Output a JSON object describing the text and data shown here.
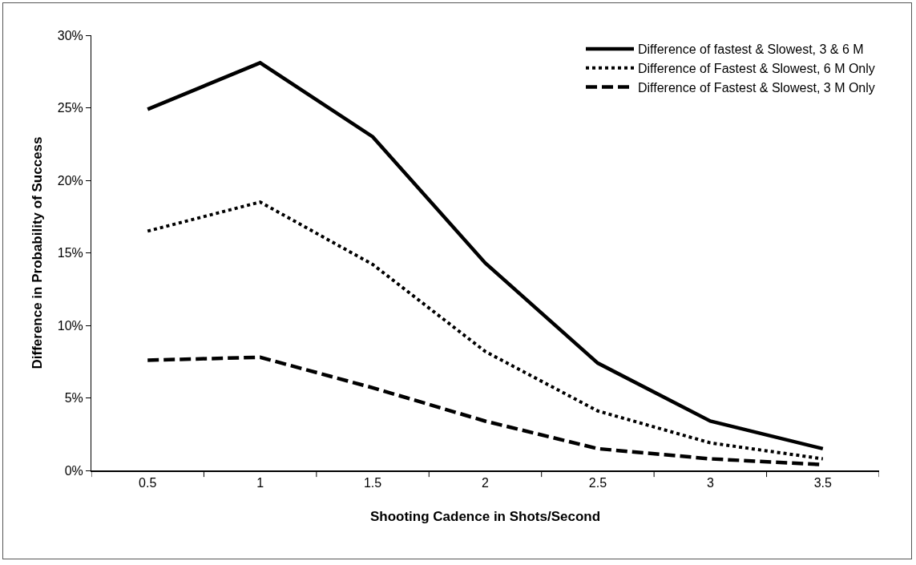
{
  "chart_data": {
    "type": "line",
    "xlabel": "Shooting Cadence in Shots/Second",
    "ylabel": "Difference in Probability of Success",
    "categories": [
      "0.5",
      "1",
      "1.5",
      "2",
      "2.5",
      "3",
      "3.5"
    ],
    "series": [
      {
        "name": "Difference of fastest & Slowest, 3 & 6 M",
        "color": "#000000",
        "line_style": "solid",
        "values": [
          24.9,
          28.1,
          23.0,
          14.3,
          7.4,
          3.4,
          1.5
        ]
      },
      {
        "name": "Difference of Fastest & Slowest, 6 M Only",
        "color": "#000000",
        "line_style": "dotted",
        "values": [
          16.5,
          18.5,
          14.2,
          8.2,
          4.1,
          1.9,
          0.8
        ]
      },
      {
        "name": "Difference of Fastest & Slowest, 3 M Only",
        "color": "#000000",
        "line_style": "dashed",
        "values": [
          7.6,
          7.8,
          5.7,
          3.4,
          1.5,
          0.8,
          0.4
        ]
      }
    ],
    "ylim": [
      0,
      30
    ],
    "yticks": [
      {
        "value": 0,
        "label": "0%"
      },
      {
        "value": 5,
        "label": "5%"
      },
      {
        "value": 10,
        "label": "10%"
      },
      {
        "value": 15,
        "label": "15%"
      },
      {
        "value": 20,
        "label": "20%"
      },
      {
        "value": 25,
        "label": "25%"
      },
      {
        "value": 30,
        "label": "30%"
      }
    ],
    "grid": false,
    "legend": "top right",
    "marker": "none"
  }
}
